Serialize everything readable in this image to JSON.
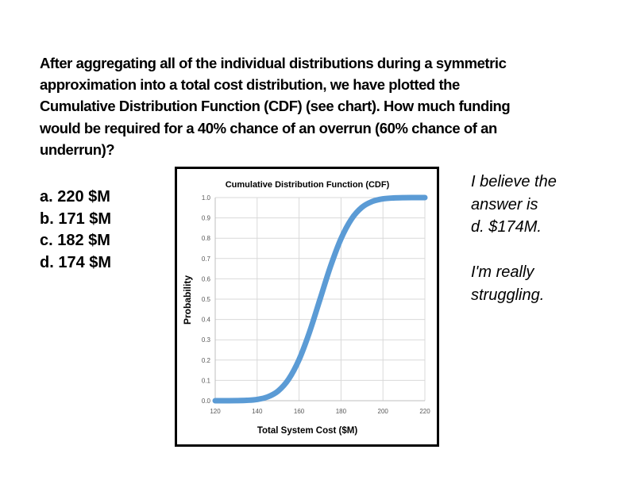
{
  "question": {
    "lines": [
      "After aggregating all of the individual distributions during a symmetric",
      "approximation into a total cost distribution, we have plotted the",
      "Cumulative Distribution Function (CDF) (see chart). How much funding",
      "would be required for a 40% chance of an overrun (60% chance of an",
      "underrun)?"
    ]
  },
  "options": [
    "a. 220 $M",
    "b. 171 $M",
    "c. 182 $M",
    "d. 174 $M"
  ],
  "note": {
    "lines": [
      "I believe the",
      "answer is",
      "d. $174M.",
      "",
      "I'm really",
      "struggling."
    ]
  },
  "chart_data": {
    "type": "line",
    "title": "Cumulative Distribution Function (CDF)",
    "xlabel": "Total System Cost ($M)",
    "ylabel": "Probability",
    "xlim": [
      120,
      220
    ],
    "ylim": [
      0,
      1
    ],
    "xticks": [
      "120",
      "140",
      "160",
      "180",
      "200",
      "220"
    ],
    "yticks": [
      "0.0",
      "0.1",
      "0.2",
      "0.3",
      "0.4",
      "0.5",
      "0.6",
      "0.7",
      "0.8",
      "0.9",
      "1.0"
    ],
    "grid": true,
    "color": "#5b9bd5",
    "x": [
      120,
      125,
      130,
      135,
      140,
      145,
      150,
      155,
      160,
      165,
      170,
      175,
      180,
      185,
      190,
      195,
      200,
      205,
      210,
      215,
      220
    ],
    "y": [
      0.0,
      0.0001,
      0.0004,
      0.0018,
      0.0062,
      0.0188,
      0.0478,
      0.1056,
      0.2023,
      0.3385,
      0.5,
      0.6615,
      0.7977,
      0.8944,
      0.9522,
      0.9812,
      0.9938,
      0.9982,
      0.9996,
      0.9999,
      1.0
    ]
  }
}
